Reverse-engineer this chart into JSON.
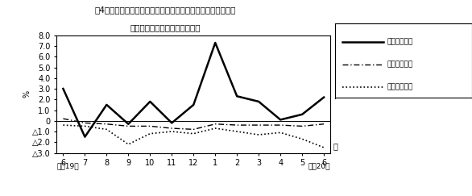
{
  "title_line1": "笥4図　　賃金、労働時間、常用雇用指数対前年同月比の推移",
  "title_line2": "（規横５人以上　調査産業計）",
  "xlabel_months": [
    "6",
    "7",
    "8",
    "9",
    "10",
    "11",
    "12",
    "1",
    "2",
    "3",
    "4",
    "5",
    "6"
  ],
  "xlabel_bottom_left": "平成19年",
  "xlabel_bottom_right": "平成20年",
  "month_label": "月",
  "ylabel": "%",
  "ylim": [
    -3.0,
    8.0
  ],
  "yticks": [
    -3.0,
    -2.0,
    -1.0,
    0.0,
    1.0,
    2.0,
    3.0,
    4.0,
    5.0,
    6.0,
    7.0,
    8.0
  ],
  "genkin_kyuyo_values": [
    3.0,
    -1.5,
    1.5,
    -0.3,
    1.8,
    -0.2,
    1.5,
    7.3,
    2.3,
    1.8,
    0.1,
    0.6,
    2.2
  ],
  "rodo_jikan_values": [
    0.2,
    -0.2,
    -0.3,
    -0.5,
    -0.5,
    -0.7,
    -0.8,
    -0.3,
    -0.4,
    -0.4,
    -0.4,
    -0.5,
    -0.3
  ],
  "koyou_shisu_values": [
    -0.4,
    -0.5,
    -0.8,
    -2.2,
    -1.2,
    -1.0,
    -1.2,
    -0.7,
    -1.0,
    -1.3,
    -1.1,
    -1.7,
    -2.5
  ],
  "legend_label_0": "現金給与総額",
  "legend_label_1": "総実労働時間",
  "legend_label_2": "常用雇用指数",
  "background_color": "#ffffff"
}
